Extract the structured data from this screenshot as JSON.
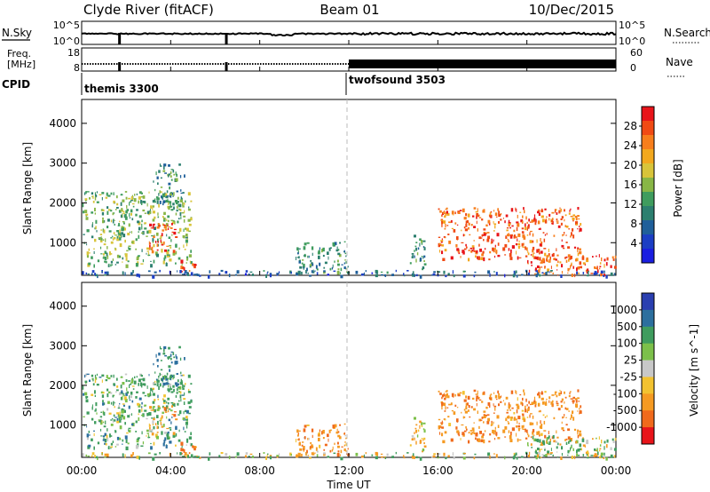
{
  "header": {
    "station": "Clyde River (fitACF)",
    "beam": "Beam 01",
    "date": "10/Dec/2015"
  },
  "summary_panels": {
    "nsky_label": "N.Sky",
    "nsky_ticks": [
      "10^5",
      "10^0"
    ],
    "nsearch_label": "N.Search",
    "nsearch_ticks": [
      "10^5",
      "10^0"
    ],
    "freq_label_1": "Freq.",
    "freq_label_2": "[MHz]",
    "freq_ticks": [
      "18",
      "8"
    ],
    "nave_label": "Nave",
    "nave_ticks": [
      "60",
      "0"
    ],
    "cpid_label": "CPID",
    "cpid_modes": [
      {
        "name": "themis 3300",
        "start_hour": 0
      },
      {
        "name": "twofsound 3503",
        "start_hour": 12
      }
    ]
  },
  "axes": {
    "time_ticks": [
      "00:00",
      "04:00",
      "08:00",
      "12:00",
      "16:00",
      "20:00",
      "00:00"
    ],
    "xlabel": "Time UT",
    "range_ylabel": "Slant Range [km]",
    "range_ticks": [
      "4000",
      "3000",
      "2000",
      "1000"
    ]
  },
  "power_scale": {
    "label": "Power [dB]",
    "ticks": [
      "28",
      "24",
      "20",
      "16",
      "12",
      "8",
      "4"
    ],
    "colors": [
      "#e8141a",
      "#f04a14",
      "#f77e1c",
      "#f2a81e",
      "#d8c43a",
      "#88b646",
      "#3f9c5e",
      "#2c7f6f",
      "#1f5f9a",
      "#1b3ec4",
      "#1a1ee0"
    ]
  },
  "velocity_scale": {
    "label": "Velocity [m s^-1]",
    "ticks": [
      "1000",
      "500",
      "100",
      "25",
      "-25",
      "-100",
      "-500",
      "-1000"
    ],
    "colors": [
      "#2a3fb0",
      "#2c6f9e",
      "#3f9c5e",
      "#7cc04a",
      "#c8c8c8",
      "#f2c230",
      "#f59a22",
      "#f06a1c",
      "#e8141a"
    ]
  },
  "chart_data": {
    "type": "heatmap",
    "title": "Clyde River (fitACF) Beam 01 10/Dec/2015",
    "xlabel": "Time UT",
    "ylabel": "Slant Range [km]",
    "xlim": [
      0,
      24
    ],
    "ylim": [
      180,
      4600
    ],
    "panels": [
      "Power [dB]",
      "Velocity [m s^-1]"
    ],
    "scatter_regions": [
      {
        "t_start": 0.0,
        "t_end": 4.9,
        "r_min": 450,
        "r_max": 2300,
        "power_db": 14,
        "velocity": 150
      },
      {
        "t_start": 3.0,
        "t_end": 4.2,
        "r_min": 800,
        "r_max": 1500,
        "power_db": 28,
        "velocity": -150
      },
      {
        "t_start": 3.2,
        "t_end": 4.6,
        "r_min": 1900,
        "r_max": 3000,
        "power_db": 10,
        "velocity": 300
      },
      {
        "t_start": 4.4,
        "t_end": 5.1,
        "r_min": 250,
        "r_max": 600,
        "power_db": 28,
        "velocity": -300
      },
      {
        "t_start": 9.6,
        "t_end": 12.0,
        "r_min": 250,
        "r_max": 1050,
        "power_db": 10,
        "velocity": -200
      },
      {
        "t_start": 14.7,
        "t_end": 15.4,
        "r_min": 300,
        "r_max": 1200,
        "power_db": 10,
        "velocity": -100
      },
      {
        "t_start": 16.0,
        "t_end": 22.4,
        "r_min": 600,
        "r_max": 1900,
        "power_db": 26,
        "velocity": -250
      },
      {
        "t_start": 20.0,
        "t_end": 24.0,
        "r_min": 200,
        "r_max": 750,
        "power_db": 26,
        "velocity": 80
      },
      {
        "t_start": 0.0,
        "t_end": 24.0,
        "r_min": 180,
        "r_max": 320,
        "power_db": 6,
        "velocity": 20
      }
    ]
  }
}
